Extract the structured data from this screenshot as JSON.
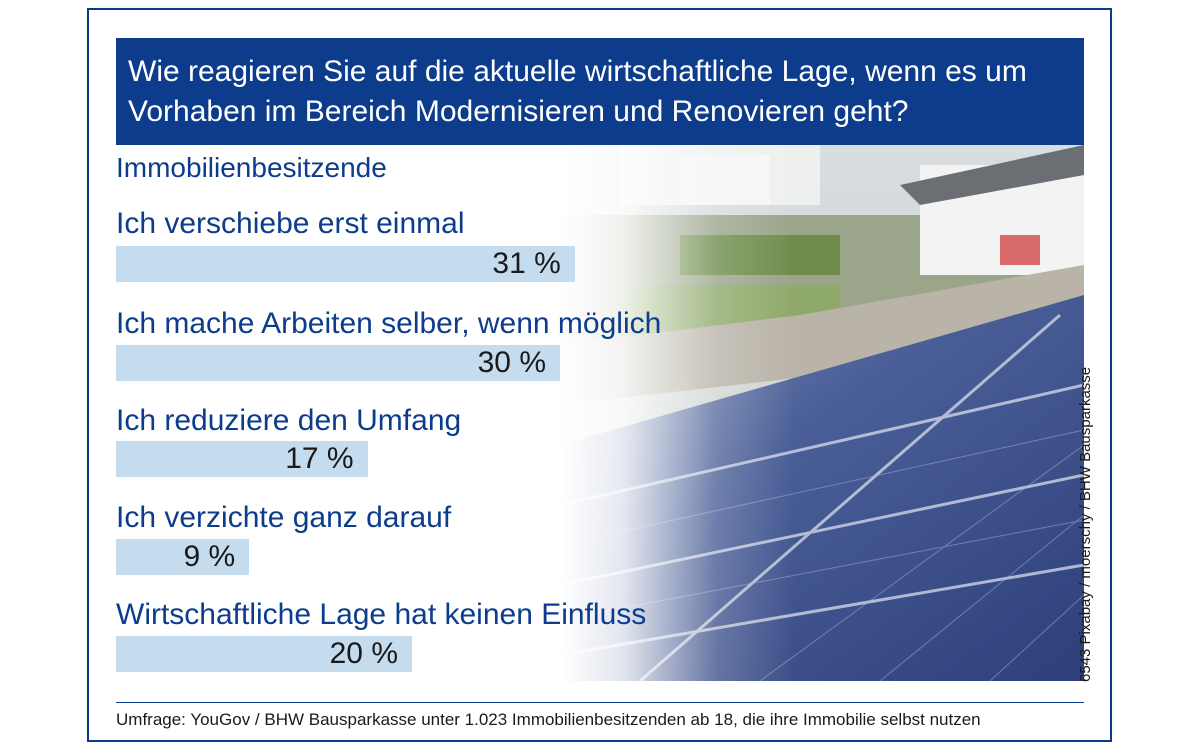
{
  "title": "Wie reagieren Sie auf die aktuelle wirtschaftliche Lage, wenn es um Vorhaben im Bereich Modernisieren und Renovieren geht?",
  "subtitle": "Immobilienbesitzende",
  "photo_credit": "6543 Pixabay / moerschy / BHW Bausparkasse",
  "footer": "Umfrage: YouGov / BHW Bausparkasse unter 1.023 Immobilienbesitzenden ab 18, die ihre Immobilie selbst nutzen",
  "colors": {
    "title_bg": "#0d3c8c",
    "bar": "#c5dcef",
    "text_blue": "#0d3c8c"
  },
  "chart_data": {
    "type": "bar",
    "orientation": "horizontal",
    "categories": [
      "Ich verschiebe erst einmal",
      "Ich mache Arbeiten selber, wenn möglich",
      "Ich reduziere den Umfang",
      "Ich verzichte ganz darauf",
      "Wirtschaftliche Lage hat keinen Einfluss"
    ],
    "values": [
      31,
      30,
      17,
      9,
      20
    ],
    "value_labels": [
      "31 %",
      "30 %",
      "17 %",
      "9 %",
      "20 %"
    ],
    "unit": "%",
    "title": "Wie reagieren Sie auf die aktuelle wirtschaftliche Lage, wenn es um Vorhaben im Bereich Modernisieren und Renovieren geht?",
    "subtitle": "Immobilienbesitzende",
    "grid": false,
    "legend": "none"
  }
}
